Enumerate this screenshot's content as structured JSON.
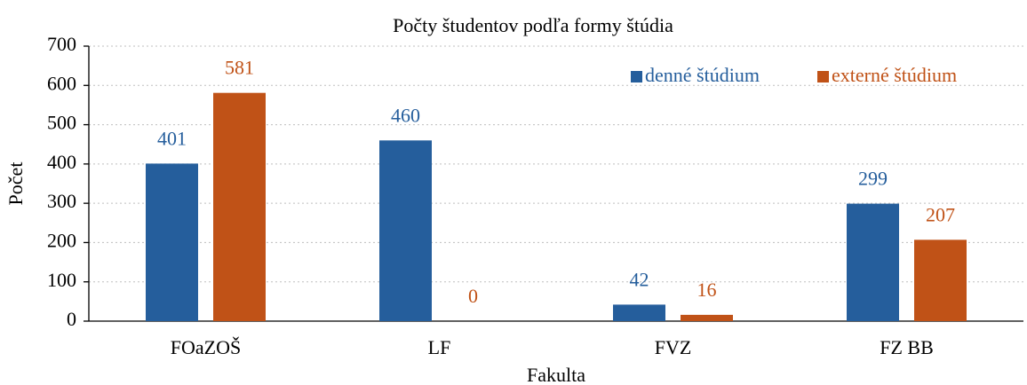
{
  "chart_data": {
    "type": "bar",
    "title": "Počty študentov podľa formy štúdia",
    "x_label": "Fakulta",
    "y_label": "Počet",
    "categories": [
      "FOaZOŠ",
      "LF",
      "FVZ",
      "FZ BB"
    ],
    "series": [
      {
        "name": "denné štúdium",
        "color": "#255e9c",
        "values": [
          401,
          460,
          42,
          299
        ]
      },
      {
        "name": "externé štúdium",
        "color": "#c05217",
        "values": [
          581,
          0,
          16,
          207
        ]
      }
    ],
    "ylim": [
      0,
      700
    ],
    "yticks": [
      0,
      100,
      200,
      300,
      400,
      500,
      600,
      700
    ],
    "grid": true,
    "legend": "top-right"
  }
}
